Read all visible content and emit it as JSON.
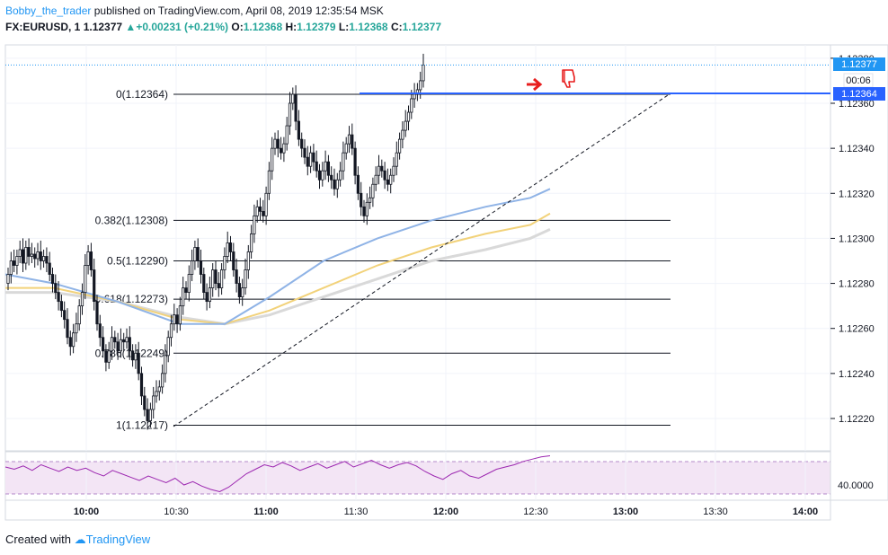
{
  "header": {
    "user": "Bobby_the_trader",
    "published": "published on TradingView.com, April 08, 2019 12:35:54 MSK"
  },
  "quote": {
    "symbol": "FX:EURUSD, 1",
    "last": "1.12377",
    "change": "+0.00231 (+0.21%)",
    "o_label": "O:",
    "o_value": "1.12368",
    "h_label": "H:",
    "h_value": "1.12379",
    "l_label": "L:",
    "l_value": "1.12368",
    "c_label": "C:",
    "c_value": "1.12377"
  },
  "footer": {
    "created_with": "Created with",
    "brand": "TradingView"
  },
  "price_axis": {
    "ticks": [
      "1.12380",
      "1.12360",
      "1.12340",
      "1.12320",
      "1.12300",
      "1.12280",
      "1.12260",
      "1.12240",
      "1.12220"
    ],
    "tick_values": [
      1.1238,
      1.1236,
      1.1234,
      1.1232,
      1.123,
      1.1228,
      1.1226,
      1.1224,
      1.1222
    ],
    "last_price_label": "1.12377",
    "countdown_label": "00:06",
    "level_label": "1.12364"
  },
  "rsi_axis": {
    "tick": "40.0000",
    "tick_value": 40
  },
  "time_axis": {
    "labels": [
      "10:00",
      "10:30",
      "11:00",
      "11:30",
      "12:00",
      "12:30",
      "13:00",
      "13:30",
      "14:00"
    ],
    "bold": [
      true,
      false,
      true,
      false,
      true,
      false,
      true,
      false,
      true
    ]
  },
  "colors": {
    "up": "#26a69a",
    "down": "#131722",
    "accent": "#2196f3",
    "ma_fast": "#8fb3e6",
    "ma_mid": "#f2d27a",
    "ma_slow": "#d9d9d9",
    "rsi_line": "#9c27b0",
    "rsi_band": "#f3e5f5",
    "annotation": "#e81e1e"
  },
  "annotations": {
    "arrow_icon": "right-arrow-icon",
    "thumb_icon": "thumbs-down-icon"
  },
  "chart_data": {
    "type": "candlestick",
    "x": {
      "start": "09:49",
      "interval_minutes": 1
    },
    "ylim": [
      1.12212,
      1.12385
    ],
    "fib_levels": [
      {
        "label": "0(1.12364)",
        "ratio": 0,
        "price": 1.12364
      },
      {
        "label": "0.382(1.12308)",
        "ratio": 0.382,
        "price": 1.12308
      },
      {
        "label": "0.5(1.12290)",
        "ratio": 0.5,
        "price": 1.1229
      },
      {
        "label": "0.618(1.12273)",
        "ratio": 0.618,
        "price": 1.12273
      },
      {
        "label": "0.786(1.12249)",
        "ratio": 0.786,
        "price": 1.12249
      },
      {
        "label": "1(1.12217)",
        "ratio": 1,
        "price": 1.12217
      }
    ],
    "candles_close": [
      1.12284,
      1.1229,
      1.12288,
      1.12292,
      1.12295,
      1.12289,
      1.12296,
      1.12292,
      1.12293,
      1.12291,
      1.12294,
      1.1229,
      1.12292,
      1.12289,
      1.12284,
      1.1228,
      1.12276,
      1.12272,
      1.12268,
      1.12264,
      1.12256,
      1.12252,
      1.12258,
      1.12262,
      1.1227,
      1.12276,
      1.12288,
      1.12294,
      1.12286,
      1.12272,
      1.12262,
      1.12256,
      1.1225,
      1.12245,
      1.1225,
      1.12256,
      1.12254,
      1.1225,
      1.12255,
      1.12254,
      1.12256,
      1.1225,
      1.12246,
      1.12249,
      1.1224,
      1.1223,
      1.12224,
      1.12219,
      1.12224,
      1.1223,
      1.12232,
      1.12234,
      1.1224,
      1.12248,
      1.12256,
      1.12262,
      1.12266,
      1.12262,
      1.1227,
      1.12278,
      1.12276,
      1.12284,
      1.1229,
      1.12296,
      1.1229,
      1.12284,
      1.12276,
      1.12272,
      1.12278,
      1.12286,
      1.1228,
      1.12278,
      1.12286,
      1.12292,
      1.12298,
      1.12294,
      1.12286,
      1.1228,
      1.12274,
      1.12278,
      1.12286,
      1.12294,
      1.12302,
      1.1231,
      1.12314,
      1.12312,
      1.1231,
      1.1232,
      1.1233,
      1.1234,
      1.12344,
      1.1234,
      1.12338,
      1.12342,
      1.1235,
      1.1236,
      1.12364,
      1.12352,
      1.12344,
      1.1234,
      1.12336,
      1.12332,
      1.12338,
      1.12334,
      1.1233,
      1.12326,
      1.1233,
      1.12334,
      1.12328,
      1.12326,
      1.12322,
      1.12326,
      1.1233,
      1.12338,
      1.12342,
      1.12346,
      1.1234,
      1.12328,
      1.1232,
      1.12314,
      1.1231,
      1.12316,
      1.12318,
      1.12324,
      1.12328,
      1.12332,
      1.1233,
      1.12326,
      1.12324,
      1.12328,
      1.12332,
      1.12338,
      1.12344,
      1.12348,
      1.12352,
      1.12356,
      1.12362,
      1.12364,
      1.12366,
      1.1237,
      1.12377
    ],
    "ma_fast": [
      1.12284,
      1.1228,
      1.12272,
      1.12262,
      1.12262,
      1.12274,
      1.1229,
      1.123,
      1.12308,
      1.12314,
      1.12318,
      1.12322
    ],
    "ma_mid": [
      1.12278,
      1.12278,
      1.12272,
      1.12264,
      1.12262,
      1.12268,
      1.12278,
      1.12288,
      1.12296,
      1.12302,
      1.12306,
      1.12311
    ],
    "ma_slow": [
      1.12276,
      1.12276,
      1.12272,
      1.12265,
      1.12262,
      1.12266,
      1.12274,
      1.12282,
      1.1229,
      1.12295,
      1.123,
      1.12304
    ],
    "rsi_ylim": [
      30,
      70
    ],
    "rsi_level": 40,
    "rsi": [
      58,
      56,
      59,
      55,
      60,
      57,
      54,
      58,
      55,
      57,
      53,
      50,
      55,
      52,
      49,
      46,
      50,
      47,
      44,
      48,
      42,
      45,
      41,
      38,
      36,
      40,
      46,
      52,
      56,
      60,
      58,
      62,
      59,
      55,
      58,
      61,
      57,
      60,
      63,
      58,
      61,
      64,
      60,
      57,
      60,
      62,
      59,
      54,
      50,
      47,
      52,
      55,
      50,
      48,
      52,
      56,
      58,
      60,
      63,
      65,
      67,
      68
    ]
  }
}
